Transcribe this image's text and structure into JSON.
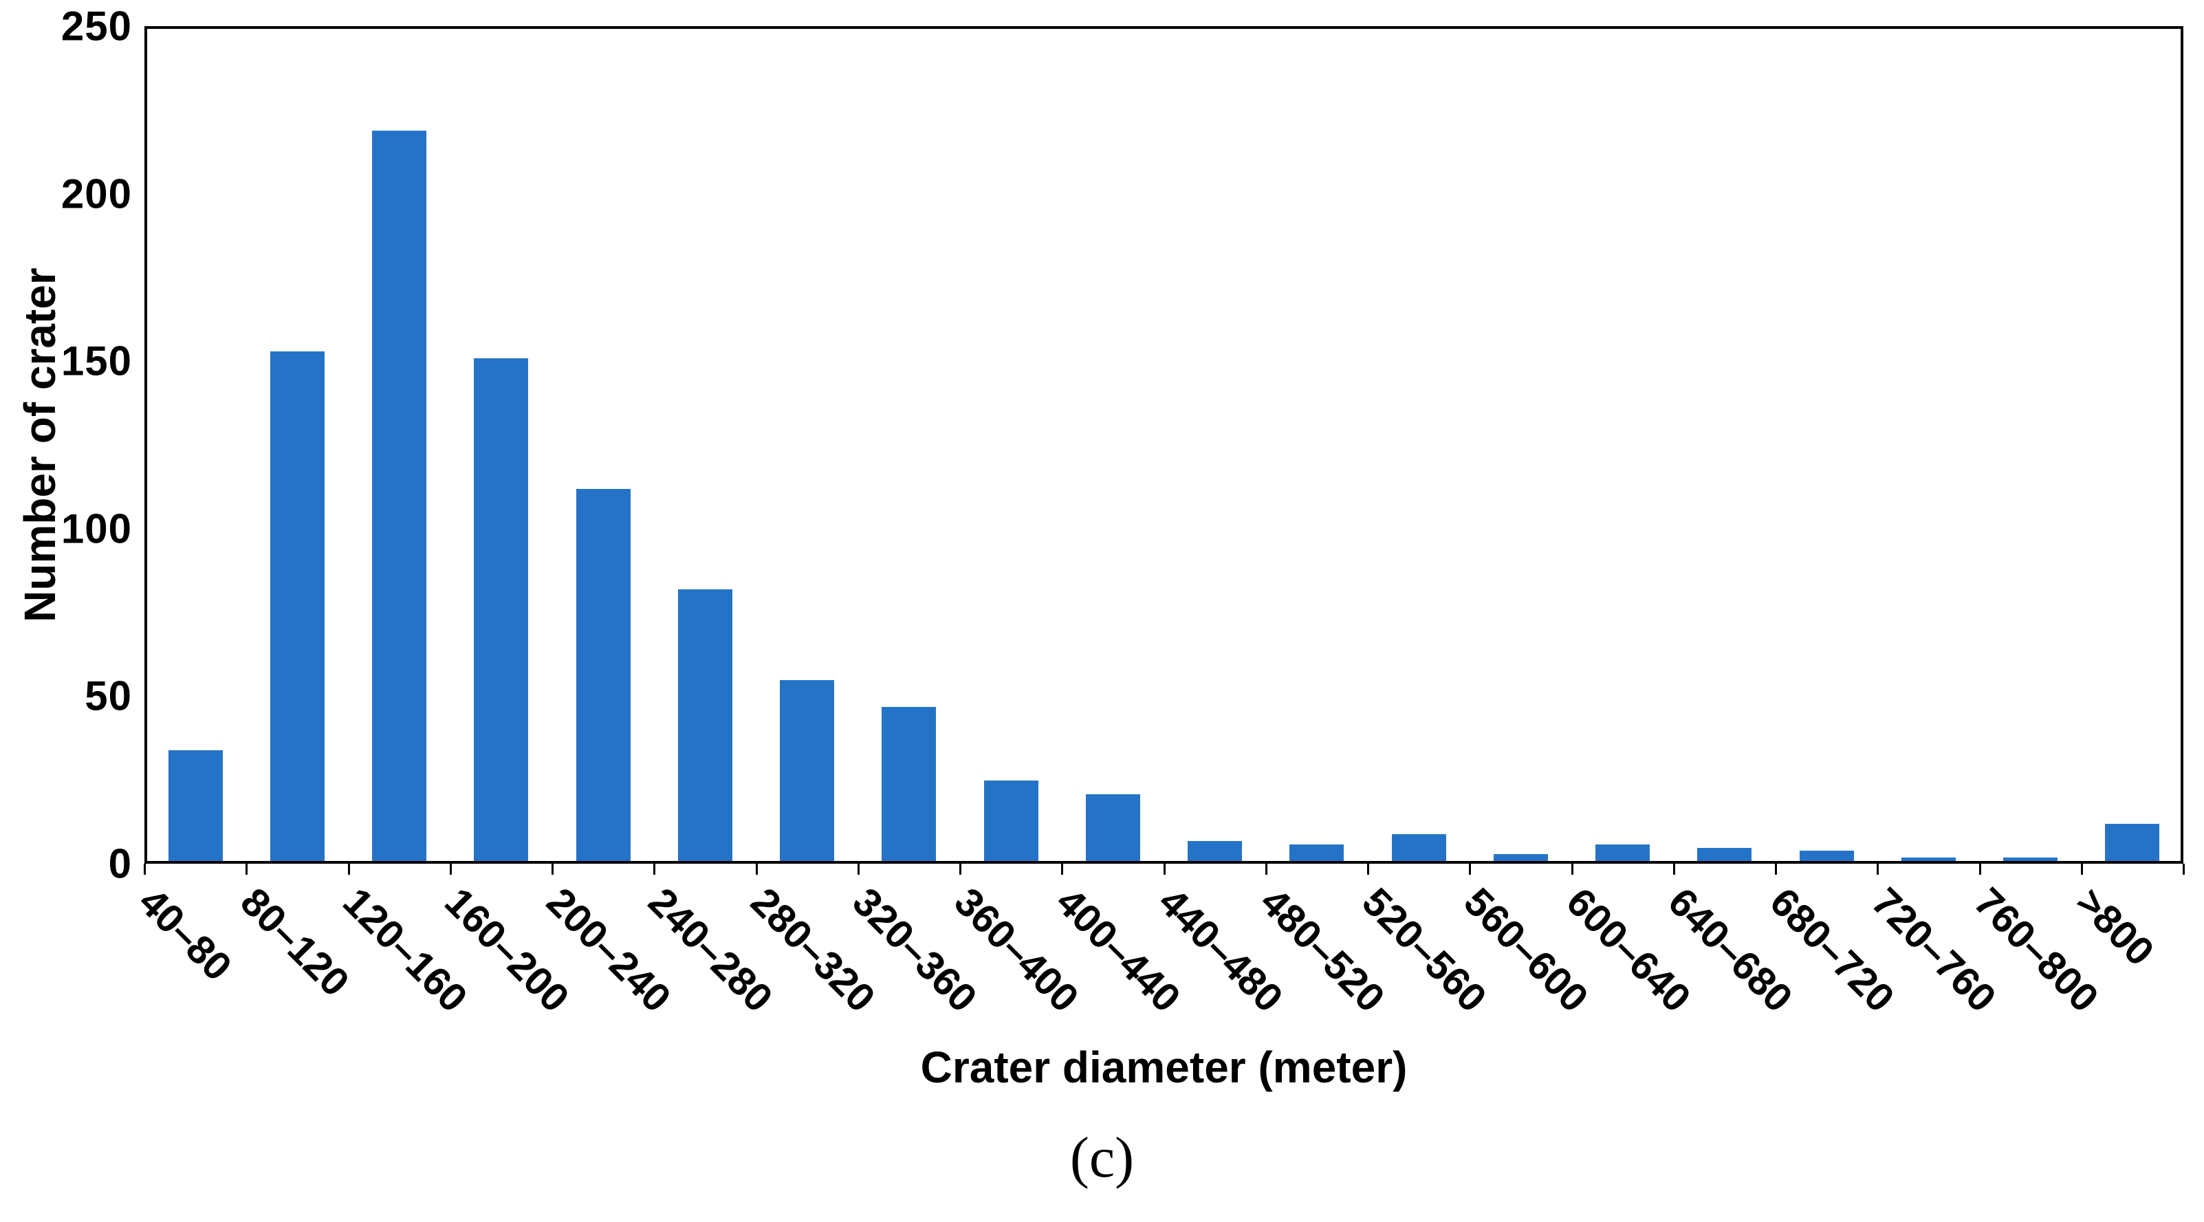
{
  "chart_data": {
    "type": "bar",
    "title": "",
    "xlabel": "Crater diameter (meter)",
    "ylabel": "Number of crater",
    "caption": "(c)",
    "categories": [
      "40–80",
      "80–120",
      "120–160",
      "160–200",
      "200–240",
      "240–280",
      "280–320",
      "320–360",
      "360–400",
      "400–440",
      "440–480",
      "480–520",
      "520–560",
      "560–600",
      "600–640",
      "640–680",
      "680–720",
      "720–760",
      "760–800",
      ">800"
    ],
    "values": [
      33,
      152,
      218,
      150,
      111,
      81,
      54,
      46,
      24,
      20,
      6,
      5,
      8,
      2,
      5,
      4,
      3,
      1,
      1,
      11
    ],
    "ylim": [
      0,
      250
    ],
    "yticks": [
      0,
      50,
      100,
      150,
      200,
      250
    ],
    "grid": false,
    "legend": "none",
    "bar_color": "#2573C7",
    "axis_color": "#000000"
  }
}
